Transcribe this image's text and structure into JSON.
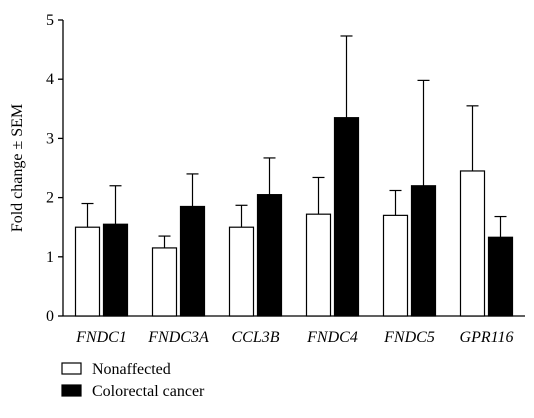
{
  "chart_data": {
    "type": "bar",
    "categories": [
      "FNDC1",
      "FNDC3A",
      "CCL3B",
      "FNDC4",
      "FNDC5",
      "GPR116"
    ],
    "series": [
      {
        "name": "Nonaffected",
        "color": "#ffffff",
        "values": [
          1.5,
          1.15,
          1.5,
          1.72,
          1.7,
          2.45
        ],
        "errors": [
          0.4,
          0.2,
          0.37,
          0.62,
          0.42,
          1.1
        ]
      },
      {
        "name": "Colorectal cancer",
        "color": "#000000",
        "values": [
          1.55,
          1.85,
          2.05,
          3.35,
          2.2,
          1.33
        ],
        "errors": [
          0.65,
          0.55,
          0.62,
          1.38,
          1.78,
          0.35
        ]
      }
    ],
    "ylabel": "Fold change ± SEM",
    "xlabel": "",
    "ylim": [
      0,
      5
    ],
    "yticks": [
      "0",
      "1",
      "2",
      "3",
      "4",
      "5"
    ],
    "legend": "bottom-left",
    "grid": false
  }
}
